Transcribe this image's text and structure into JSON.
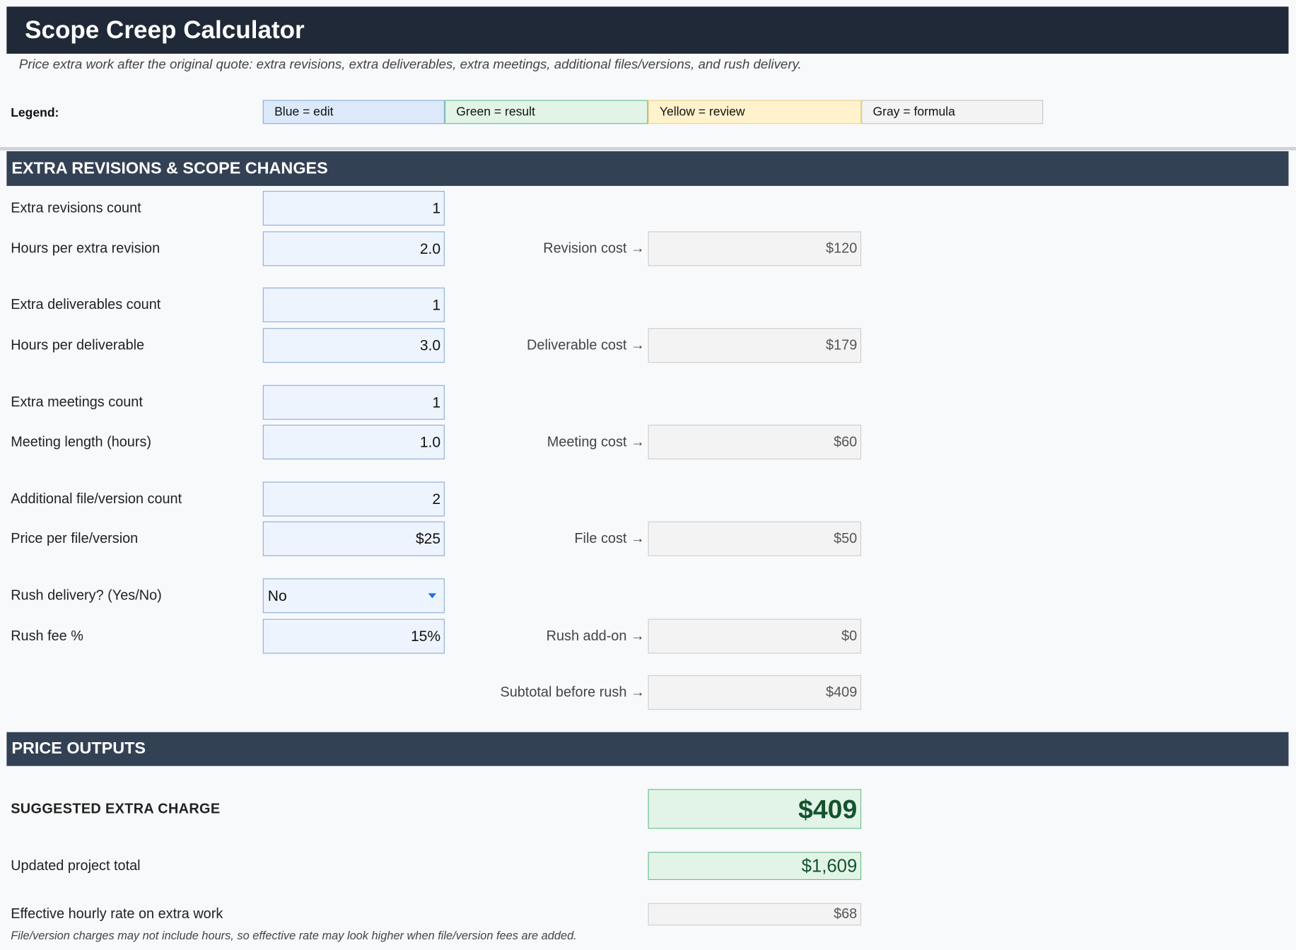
{
  "header": {
    "title": "Scope Creep Calculator",
    "subtitle": "Price extra work after the original quote: extra revisions, extra deliverables, extra meetings, additional files/versions, and rush delivery."
  },
  "legend": {
    "label": "Legend:",
    "items": [
      "Blue = edit",
      "Green = result",
      "Yellow = review",
      "Gray = formula"
    ]
  },
  "section1": {
    "title": "EXTRA REVISIONS & SCOPE CHANGES",
    "inputs": [
      {
        "label": "Extra revisions count",
        "value": "1"
      },
      {
        "label": "Hours per extra revision",
        "value": "2.0"
      },
      {
        "label": "Extra deliverables count",
        "value": "1"
      },
      {
        "label": "Hours per deliverable",
        "value": "3.0"
      },
      {
        "label": "Extra meetings count",
        "value": "1"
      },
      {
        "label": "Meeting length (hours)",
        "value": "1.0"
      },
      {
        "label": "Additional file/version count",
        "value": "2"
      },
      {
        "label": "Price per file/version",
        "value": "$25"
      },
      {
        "label": "Rush delivery? (Yes/No)",
        "value": "No"
      },
      {
        "label": "Rush fee %",
        "value": "15%"
      }
    ],
    "outputs": [
      {
        "label": "Revision cost →",
        "value": "$120"
      },
      {
        "label": "Deliverable cost →",
        "value": "$179"
      },
      {
        "label": "Meeting cost →",
        "value": "$60"
      },
      {
        "label": "File cost →",
        "value": "$50"
      },
      {
        "label": "Rush add-on →",
        "value": "$0"
      },
      {
        "label": "Subtotal before rush →",
        "value": "$409"
      }
    ]
  },
  "section2": {
    "title": "PRICE OUTPUTS",
    "rows": [
      {
        "label": "SUGGESTED EXTRA CHARGE",
        "value": "$409"
      },
      {
        "label": "Updated project total",
        "value": "$1,609"
      },
      {
        "label": "Effective hourly rate on extra work",
        "value": "$68"
      }
    ],
    "note": "File/version charges may not include hours, so effective rate may look higher when file/version fees are added."
  }
}
